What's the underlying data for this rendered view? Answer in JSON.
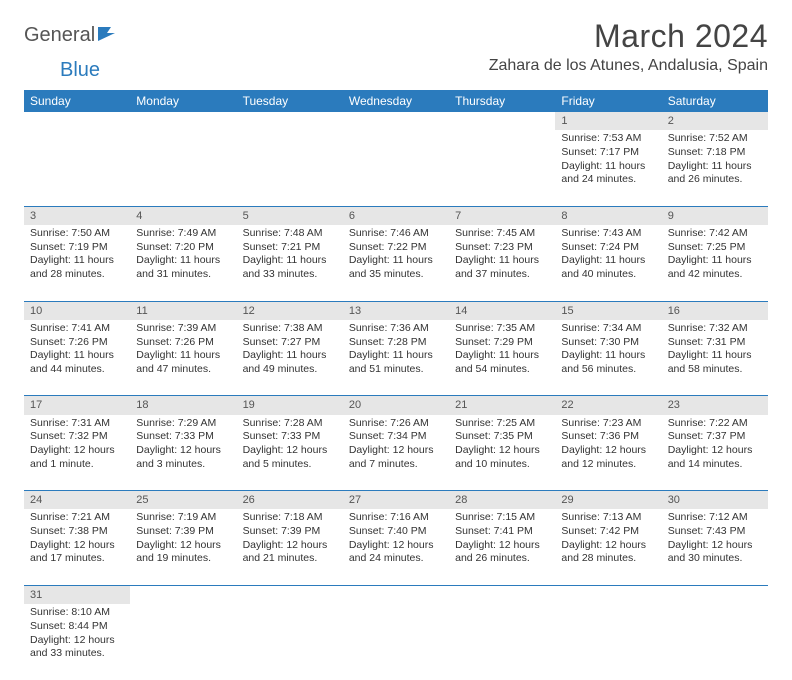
{
  "logo": {
    "part1": "General",
    "part2": "Blue"
  },
  "title": "March 2024",
  "location": "Zahara de los Atunes, Andalusia, Spain",
  "colors": {
    "header_bg": "#2b7bbd",
    "header_text": "#ffffff",
    "daynum_bg": "#e6e6e6",
    "border": "#2b7bbd",
    "body_text": "#333333"
  },
  "day_headers": [
    "Sunday",
    "Monday",
    "Tuesday",
    "Wednesday",
    "Thursday",
    "Friday",
    "Saturday"
  ],
  "weeks": [
    [
      null,
      null,
      null,
      null,
      null,
      {
        "n": "1",
        "sr": "Sunrise: 7:53 AM",
        "ss": "Sunset: 7:17 PM",
        "dl1": "Daylight: 11 hours",
        "dl2": "and 24 minutes."
      },
      {
        "n": "2",
        "sr": "Sunrise: 7:52 AM",
        "ss": "Sunset: 7:18 PM",
        "dl1": "Daylight: 11 hours",
        "dl2": "and 26 minutes."
      }
    ],
    [
      {
        "n": "3",
        "sr": "Sunrise: 7:50 AM",
        "ss": "Sunset: 7:19 PM",
        "dl1": "Daylight: 11 hours",
        "dl2": "and 28 minutes."
      },
      {
        "n": "4",
        "sr": "Sunrise: 7:49 AM",
        "ss": "Sunset: 7:20 PM",
        "dl1": "Daylight: 11 hours",
        "dl2": "and 31 minutes."
      },
      {
        "n": "5",
        "sr": "Sunrise: 7:48 AM",
        "ss": "Sunset: 7:21 PM",
        "dl1": "Daylight: 11 hours",
        "dl2": "and 33 minutes."
      },
      {
        "n": "6",
        "sr": "Sunrise: 7:46 AM",
        "ss": "Sunset: 7:22 PM",
        "dl1": "Daylight: 11 hours",
        "dl2": "and 35 minutes."
      },
      {
        "n": "7",
        "sr": "Sunrise: 7:45 AM",
        "ss": "Sunset: 7:23 PM",
        "dl1": "Daylight: 11 hours",
        "dl2": "and 37 minutes."
      },
      {
        "n": "8",
        "sr": "Sunrise: 7:43 AM",
        "ss": "Sunset: 7:24 PM",
        "dl1": "Daylight: 11 hours",
        "dl2": "and 40 minutes."
      },
      {
        "n": "9",
        "sr": "Sunrise: 7:42 AM",
        "ss": "Sunset: 7:25 PM",
        "dl1": "Daylight: 11 hours",
        "dl2": "and 42 minutes."
      }
    ],
    [
      {
        "n": "10",
        "sr": "Sunrise: 7:41 AM",
        "ss": "Sunset: 7:26 PM",
        "dl1": "Daylight: 11 hours",
        "dl2": "and 44 minutes."
      },
      {
        "n": "11",
        "sr": "Sunrise: 7:39 AM",
        "ss": "Sunset: 7:26 PM",
        "dl1": "Daylight: 11 hours",
        "dl2": "and 47 minutes."
      },
      {
        "n": "12",
        "sr": "Sunrise: 7:38 AM",
        "ss": "Sunset: 7:27 PM",
        "dl1": "Daylight: 11 hours",
        "dl2": "and 49 minutes."
      },
      {
        "n": "13",
        "sr": "Sunrise: 7:36 AM",
        "ss": "Sunset: 7:28 PM",
        "dl1": "Daylight: 11 hours",
        "dl2": "and 51 minutes."
      },
      {
        "n": "14",
        "sr": "Sunrise: 7:35 AM",
        "ss": "Sunset: 7:29 PM",
        "dl1": "Daylight: 11 hours",
        "dl2": "and 54 minutes."
      },
      {
        "n": "15",
        "sr": "Sunrise: 7:34 AM",
        "ss": "Sunset: 7:30 PM",
        "dl1": "Daylight: 11 hours",
        "dl2": "and 56 minutes."
      },
      {
        "n": "16",
        "sr": "Sunrise: 7:32 AM",
        "ss": "Sunset: 7:31 PM",
        "dl1": "Daylight: 11 hours",
        "dl2": "and 58 minutes."
      }
    ],
    [
      {
        "n": "17",
        "sr": "Sunrise: 7:31 AM",
        "ss": "Sunset: 7:32 PM",
        "dl1": "Daylight: 12 hours",
        "dl2": "and 1 minute."
      },
      {
        "n": "18",
        "sr": "Sunrise: 7:29 AM",
        "ss": "Sunset: 7:33 PM",
        "dl1": "Daylight: 12 hours",
        "dl2": "and 3 minutes."
      },
      {
        "n": "19",
        "sr": "Sunrise: 7:28 AM",
        "ss": "Sunset: 7:33 PM",
        "dl1": "Daylight: 12 hours",
        "dl2": "and 5 minutes."
      },
      {
        "n": "20",
        "sr": "Sunrise: 7:26 AM",
        "ss": "Sunset: 7:34 PM",
        "dl1": "Daylight: 12 hours",
        "dl2": "and 7 minutes."
      },
      {
        "n": "21",
        "sr": "Sunrise: 7:25 AM",
        "ss": "Sunset: 7:35 PM",
        "dl1": "Daylight: 12 hours",
        "dl2": "and 10 minutes."
      },
      {
        "n": "22",
        "sr": "Sunrise: 7:23 AM",
        "ss": "Sunset: 7:36 PM",
        "dl1": "Daylight: 12 hours",
        "dl2": "and 12 minutes."
      },
      {
        "n": "23",
        "sr": "Sunrise: 7:22 AM",
        "ss": "Sunset: 7:37 PM",
        "dl1": "Daylight: 12 hours",
        "dl2": "and 14 minutes."
      }
    ],
    [
      {
        "n": "24",
        "sr": "Sunrise: 7:21 AM",
        "ss": "Sunset: 7:38 PM",
        "dl1": "Daylight: 12 hours",
        "dl2": "and 17 minutes."
      },
      {
        "n": "25",
        "sr": "Sunrise: 7:19 AM",
        "ss": "Sunset: 7:39 PM",
        "dl1": "Daylight: 12 hours",
        "dl2": "and 19 minutes."
      },
      {
        "n": "26",
        "sr": "Sunrise: 7:18 AM",
        "ss": "Sunset: 7:39 PM",
        "dl1": "Daylight: 12 hours",
        "dl2": "and 21 minutes."
      },
      {
        "n": "27",
        "sr": "Sunrise: 7:16 AM",
        "ss": "Sunset: 7:40 PM",
        "dl1": "Daylight: 12 hours",
        "dl2": "and 24 minutes."
      },
      {
        "n": "28",
        "sr": "Sunrise: 7:15 AM",
        "ss": "Sunset: 7:41 PM",
        "dl1": "Daylight: 12 hours",
        "dl2": "and 26 minutes."
      },
      {
        "n": "29",
        "sr": "Sunrise: 7:13 AM",
        "ss": "Sunset: 7:42 PM",
        "dl1": "Daylight: 12 hours",
        "dl2": "and 28 minutes."
      },
      {
        "n": "30",
        "sr": "Sunrise: 7:12 AM",
        "ss": "Sunset: 7:43 PM",
        "dl1": "Daylight: 12 hours",
        "dl2": "and 30 minutes."
      }
    ],
    [
      {
        "n": "31",
        "sr": "Sunrise: 8:10 AM",
        "ss": "Sunset: 8:44 PM",
        "dl1": "Daylight: 12 hours",
        "dl2": "and 33 minutes."
      },
      null,
      null,
      null,
      null,
      null,
      null
    ]
  ]
}
